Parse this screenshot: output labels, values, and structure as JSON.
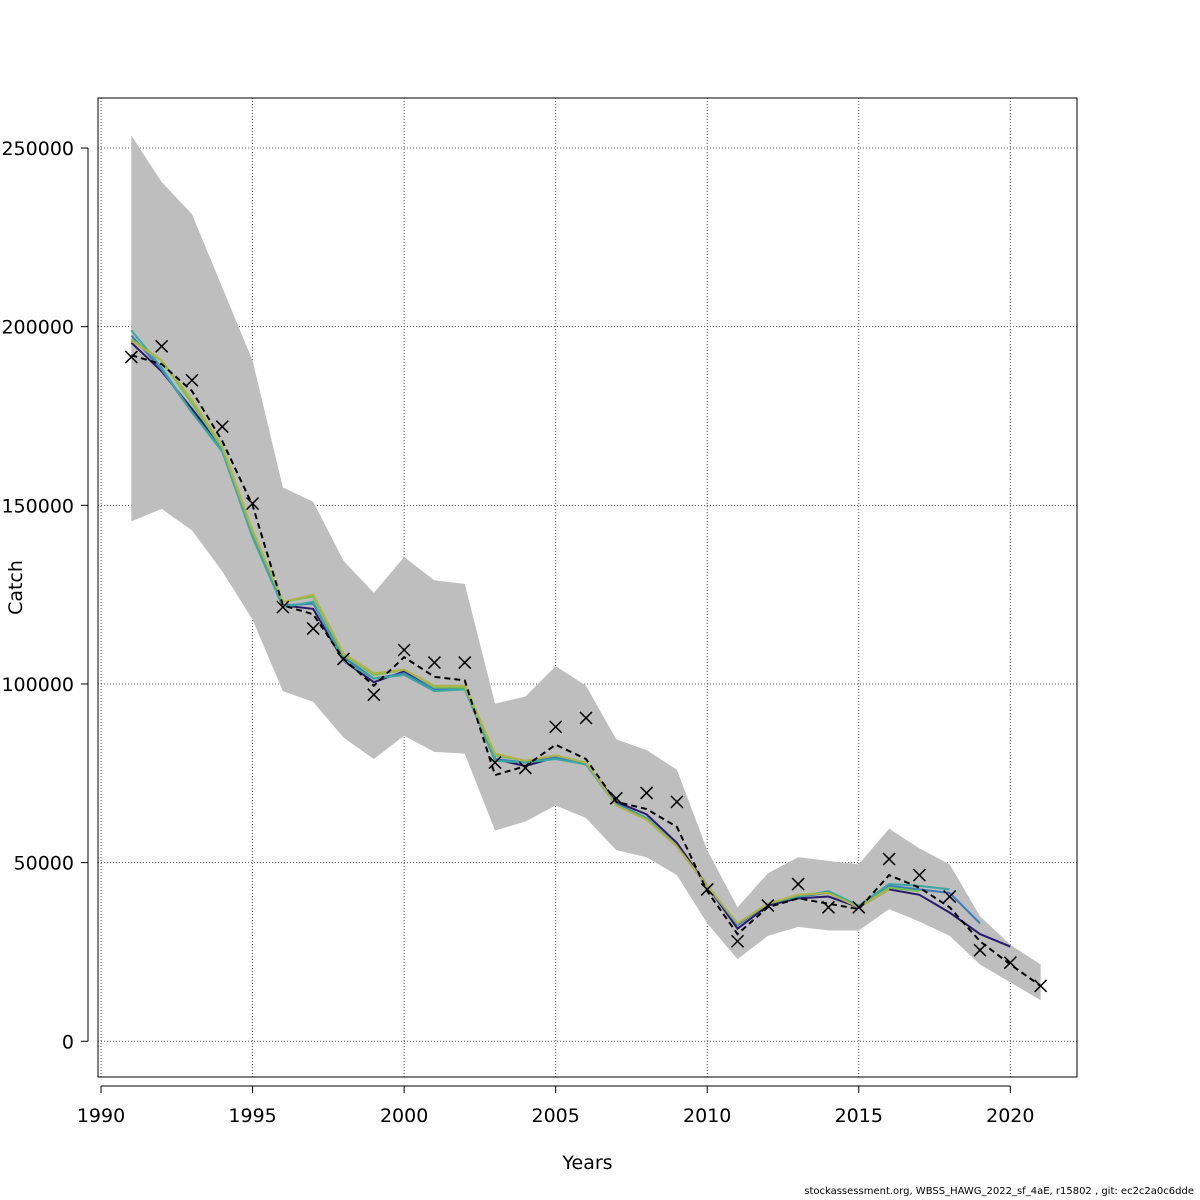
{
  "chart_data": {
    "type": "line",
    "xlabel": "Years",
    "ylabel": "Catch",
    "xlim": [
      1989.9,
      2022.2
    ],
    "ylim": [
      -10000,
      264000
    ],
    "x_ticks": [
      1990,
      1995,
      2000,
      2005,
      2010,
      2015,
      2020
    ],
    "y_ticks": [
      0,
      50000,
      100000,
      150000,
      200000,
      250000
    ],
    "y_tick_labels": [
      "0",
      "50000",
      "100000",
      "150000",
      "200000",
      "250000"
    ],
    "grid": true,
    "confidence_band": {
      "color": "#bebebe",
      "x": [
        1991,
        1992,
        1993,
        1994,
        1995,
        1996,
        1997,
        1998,
        1999,
        2000,
        2001,
        2002,
        2003,
        2004,
        2005,
        2006,
        2007,
        2008,
        2009,
        2010,
        2011,
        2012,
        2013,
        2014,
        2015,
        2016,
        2017,
        2018,
        2019,
        2020,
        2021
      ],
      "lower": [
        145500,
        149000,
        143000,
        131500,
        118000,
        98000,
        95000,
        85000,
        79000,
        85500,
        81000,
        80500,
        59000,
        61500,
        66000,
        62500,
        53500,
        51500,
        46500,
        33000,
        23000,
        29500,
        32000,
        31000,
        31000,
        37000,
        33500,
        29500,
        21500,
        16500,
        11500
      ],
      "upper": [
        253500,
        240500,
        231500,
        211000,
        190500,
        155000,
        151000,
        134500,
        125500,
        135500,
        129000,
        128000,
        94500,
        96500,
        105000,
        99500,
        84500,
        81500,
        76000,
        53500,
        37500,
        47000,
        51500,
        50500,
        49500,
        59500,
        54000,
        49500,
        35000,
        27000,
        21500
      ]
    },
    "observed": {
      "marker": "x",
      "color": "#000000",
      "x": [
        1991,
        1992,
        1993,
        1994,
        1995,
        1996,
        1997,
        1998,
        1999,
        2000,
        2001,
        2002,
        2003,
        2004,
        2005,
        2006,
        2007,
        2008,
        2009,
        2010,
        2011,
        2012,
        2013,
        2014,
        2015,
        2016,
        2017,
        2018,
        2019,
        2020,
        2021
      ],
      "y": [
        191500,
        194500,
        185000,
        172000,
        150500,
        121500,
        115500,
        107000,
        97000,
        109500,
        106000,
        106000,
        78000,
        76500,
        88000,
        90500,
        68000,
        69500,
        67000,
        42500,
        28000,
        38000,
        44000,
        37500,
        37500,
        51000,
        46500,
        40500,
        25500,
        22000,
        15500
      ]
    },
    "fitted": {
      "style": "dashed",
      "color": "#000000",
      "x": [
        1991,
        1992,
        1993,
        1994,
        1995,
        1996,
        1997,
        1998,
        1999,
        2000,
        2001,
        2002,
        2003,
        2004,
        2005,
        2006,
        2007,
        2008,
        2009,
        2010,
        2011,
        2012,
        2013,
        2014,
        2015,
        2016,
        2017,
        2018,
        2019,
        2020,
        2021
      ],
      "y": [
        192000,
        189500,
        182000,
        168000,
        150000,
        122000,
        119500,
        107000,
        99500,
        107500,
        102000,
        101000,
        74500,
        77000,
        83000,
        79000,
        67000,
        65000,
        60000,
        42000,
        30000,
        37500,
        40000,
        38500,
        37000,
        46500,
        43000,
        37500,
        28000,
        21500,
        15500
      ]
    },
    "series": [
      {
        "color": "#2a1a6a",
        "x": [
          1991,
          1992,
          1993,
          1994,
          1995,
          1996,
          1997,
          1998,
          1999,
          2000,
          2001,
          2002,
          2003,
          2004,
          2005,
          2006,
          2007,
          2008,
          2009,
          2010,
          2011,
          2012,
          2013,
          2014,
          2015,
          2016,
          2017,
          2018,
          2019,
          2020
        ],
        "y": [
          195500,
          187500,
          177000,
          166000,
          141500,
          122000,
          121000,
          106500,
          100500,
          103500,
          99000,
          99000,
          79000,
          77000,
          79500,
          77500,
          67000,
          63500,
          55500,
          43500,
          31500,
          38000,
          40000,
          40500,
          37500,
          42500,
          41000,
          36000,
          30000,
          26500
        ]
      },
      {
        "color": "#3b7bbf",
        "x": [
          1991,
          1992,
          1993,
          1994,
          1995,
          1996,
          1997,
          1998,
          1999,
          2000,
          2001,
          2002,
          2003,
          2004,
          2005,
          2006,
          2007,
          2008,
          2009,
          2010,
          2011,
          2012,
          2013,
          2014,
          2015,
          2016,
          2017,
          2018,
          2019
        ],
        "y": [
          197500,
          188000,
          176000,
          165500,
          141500,
          122000,
          122500,
          107500,
          101500,
          103000,
          98500,
          99000,
          79000,
          78000,
          79500,
          77500,
          66500,
          62500,
          54500,
          43500,
          32500,
          38500,
          40500,
          41500,
          37500,
          43500,
          42500,
          41500,
          33000
        ]
      },
      {
        "color": "#3aa8a0",
        "x": [
          1991,
          1992,
          1993,
          1994,
          1995,
          1996,
          1997,
          1998,
          1999,
          2000,
          2001,
          2002,
          2003,
          2004,
          2005,
          2006,
          2007,
          2008,
          2009,
          2010,
          2011,
          2012,
          2013,
          2014,
          2015,
          2016,
          2017,
          2018
        ],
        "y": [
          199000,
          188500,
          176000,
          165000,
          141000,
          121500,
          123000,
          106500,
          101500,
          102500,
          98000,
          98500,
          78500,
          78000,
          79000,
          77500,
          66000,
          62500,
          54500,
          43500,
          33000,
          38500,
          40500,
          42000,
          38000,
          44000,
          43500,
          42500
        ]
      },
      {
        "color": "#75c050",
        "x": [
          1991,
          1992,
          1993,
          1994,
          1995,
          1996,
          1997,
          1998,
          1999,
          2000,
          2001,
          2002,
          2003,
          2004,
          2005,
          2006,
          2007,
          2008,
          2009,
          2010,
          2011,
          2012,
          2013,
          2014,
          2015,
          2016,
          2017
        ],
        "y": [
          196500,
          190500,
          178500,
          166000,
          142500,
          123000,
          124500,
          108000,
          102500,
          104000,
          99000,
          99000,
          80000,
          78500,
          80000,
          78000,
          66000,
          62000,
          54500,
          43500,
          33000,
          38500,
          41000,
          41500,
          37500,
          43000,
          42000
        ]
      },
      {
        "color": "#b3b24a",
        "x": [
          1991,
          1992,
          1993,
          1994,
          1995,
          1996,
          1997,
          1998,
          1999,
          2000,
          2001,
          2002,
          2003,
          2004,
          2005,
          2006,
          2007,
          2008,
          2009,
          2010,
          2011,
          2012,
          2013,
          2014,
          2015,
          2016
        ],
        "y": [
          196000,
          190500,
          179500,
          166500,
          143000,
          123000,
          125000,
          108500,
          103000,
          104000,
          99500,
          99500,
          80500,
          78500,
          80000,
          78000,
          66000,
          62000,
          54500,
          43500,
          33000,
          38500,
          41000,
          41500,
          37500,
          42500
        ]
      }
    ]
  },
  "footer_text": "stockassessment.org, WBSS_HAWG_2022_sf_4aE, r15802 , git: ec2c2a0c6dde"
}
